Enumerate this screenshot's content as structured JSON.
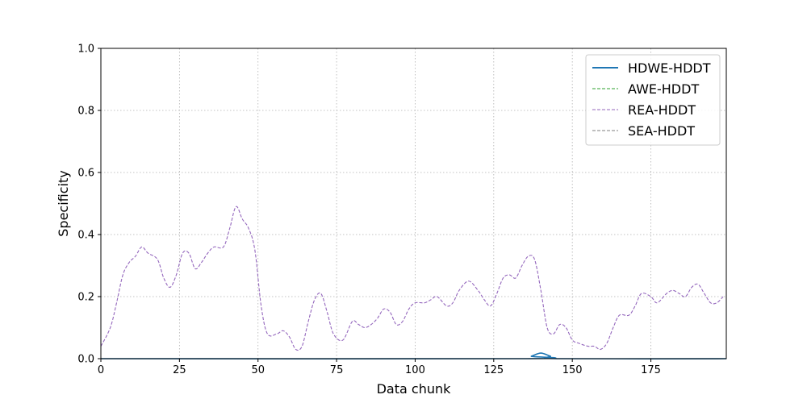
{
  "chart_data": {
    "type": "line",
    "title": "",
    "xlabel": "Data chunk",
    "ylabel": "Specificity",
    "xlim": [
      0,
      199
    ],
    "ylim": [
      0,
      1.0
    ],
    "x_ticks": [
      0,
      25,
      50,
      75,
      100,
      125,
      150,
      175
    ],
    "y_ticks": [
      0.0,
      0.2,
      0.4,
      0.6,
      0.8,
      1.0
    ],
    "x_tick_labels": [
      "0",
      "25",
      "50",
      "75",
      "100",
      "125",
      "150",
      "175"
    ],
    "y_tick_labels": [
      "0.0",
      "0.2",
      "0.4",
      "0.6",
      "0.8",
      "1.0"
    ],
    "grid": true,
    "legend_position": "top-right",
    "series": [
      {
        "name": "HDWE-HDDT",
        "color": "#1f77b4",
        "style": "solid",
        "points": [
          [
            0,
            0
          ],
          [
            134,
            0
          ],
          [
            137,
            0.008
          ],
          [
            140,
            0.018
          ],
          [
            143,
            0.008
          ],
          [
            146,
            0
          ],
          [
            199,
            0
          ]
        ]
      },
      {
        "name": "AWE-HDDT",
        "color": "#2ca02c",
        "style": "dashed",
        "points": [
          [
            0,
            0
          ],
          [
            199,
            0
          ]
        ]
      },
      {
        "name": "REA-HDDT",
        "color": "#9467bd",
        "style": "dashed",
        "points": [
          [
            0,
            0.04
          ],
          [
            3,
            0.1
          ],
          [
            5,
            0.18
          ],
          [
            7,
            0.27
          ],
          [
            9,
            0.31
          ],
          [
            11,
            0.33
          ],
          [
            13,
            0.36
          ],
          [
            15,
            0.34
          ],
          [
            18,
            0.32
          ],
          [
            20,
            0.26
          ],
          [
            22,
            0.23
          ],
          [
            24,
            0.27
          ],
          [
            26,
            0.34
          ],
          [
            28,
            0.34
          ],
          [
            30,
            0.29
          ],
          [
            32,
            0.31
          ],
          [
            34,
            0.34
          ],
          [
            36,
            0.36
          ],
          [
            39,
            0.36
          ],
          [
            41,
            0.42
          ],
          [
            43,
            0.49
          ],
          [
            45,
            0.45
          ],
          [
            47,
            0.42
          ],
          [
            49,
            0.35
          ],
          [
            51,
            0.17
          ],
          [
            53,
            0.08
          ],
          [
            56,
            0.08
          ],
          [
            58,
            0.09
          ],
          [
            60,
            0.07
          ],
          [
            62,
            0.03
          ],
          [
            64,
            0.04
          ],
          [
            66,
            0.12
          ],
          [
            68,
            0.19
          ],
          [
            70,
            0.21
          ],
          [
            72,
            0.15
          ],
          [
            74,
            0.08
          ],
          [
            77,
            0.06
          ],
          [
            80,
            0.12
          ],
          [
            82,
            0.11
          ],
          [
            84,
            0.1
          ],
          [
            86,
            0.11
          ],
          [
            88,
            0.13
          ],
          [
            90,
            0.16
          ],
          [
            92,
            0.15
          ],
          [
            94,
            0.11
          ],
          [
            96,
            0.12
          ],
          [
            98,
            0.16
          ],
          [
            100,
            0.18
          ],
          [
            103,
            0.18
          ],
          [
            105,
            0.19
          ],
          [
            107,
            0.2
          ],
          [
            110,
            0.17
          ],
          [
            112,
            0.18
          ],
          [
            114,
            0.22
          ],
          [
            117,
            0.25
          ],
          [
            120,
            0.22
          ],
          [
            122,
            0.19
          ],
          [
            124,
            0.17
          ],
          [
            126,
            0.21
          ],
          [
            128,
            0.26
          ],
          [
            130,
            0.27
          ],
          [
            132,
            0.26
          ],
          [
            134,
            0.3
          ],
          [
            136,
            0.33
          ],
          [
            138,
            0.32
          ],
          [
            140,
            0.22
          ],
          [
            142,
            0.1
          ],
          [
            144,
            0.08
          ],
          [
            146,
            0.11
          ],
          [
            148,
            0.1
          ],
          [
            150,
            0.06
          ],
          [
            152,
            0.05
          ],
          [
            155,
            0.04
          ],
          [
            157,
            0.04
          ],
          [
            159,
            0.03
          ],
          [
            161,
            0.05
          ],
          [
            163,
            0.1
          ],
          [
            165,
            0.14
          ],
          [
            168,
            0.14
          ],
          [
            170,
            0.17
          ],
          [
            172,
            0.21
          ],
          [
            175,
            0.2
          ],
          [
            177,
            0.18
          ],
          [
            180,
            0.21
          ],
          [
            182,
            0.22
          ],
          [
            184,
            0.21
          ],
          [
            186,
            0.2
          ],
          [
            188,
            0.23
          ],
          [
            190,
            0.24
          ],
          [
            192,
            0.21
          ],
          [
            194,
            0.18
          ],
          [
            196,
            0.18
          ],
          [
            198,
            0.2
          ]
        ]
      },
      {
        "name": "SEA-HDDT",
        "color": "#7f7f7f",
        "style": "dashed",
        "points": []
      }
    ]
  }
}
